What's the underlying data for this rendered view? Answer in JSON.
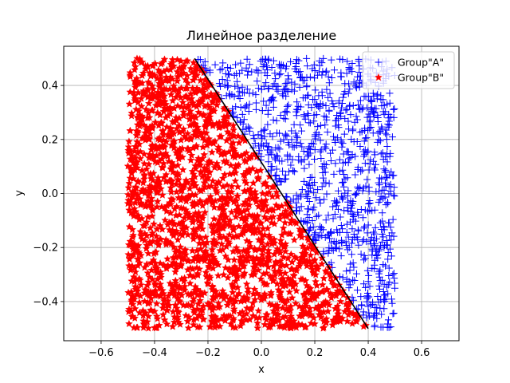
{
  "chart_data": {
    "type": "scatter",
    "title": "Линейное разделение",
    "xlabel": "x",
    "ylabel": "y",
    "xlim": [
      -0.74,
      0.74
    ],
    "ylim": [
      -0.545,
      0.545
    ],
    "xticks": [
      -0.6,
      -0.4,
      -0.2,
      0.0,
      0.2,
      0.4,
      0.6
    ],
    "yticks": [
      -0.4,
      -0.2,
      0.0,
      0.2,
      0.4
    ],
    "xtick_labels": [
      "−0.6",
      "−0.4",
      "−0.2",
      "0.0",
      "0.2",
      "0.4",
      "0.6"
    ],
    "ytick_labels": [
      "−0.4",
      "−0.2",
      "0.0",
      "0.2",
      "0.4"
    ],
    "grid": true,
    "legend_position": "top-right",
    "points_x_range": [
      -0.5,
      0.5
    ],
    "points_y_range": [
      -0.5,
      0.5
    ],
    "series": [
      {
        "name": "Group\"A\"",
        "marker": "+",
        "color": "#0000ff",
        "count": 1000,
        "region": "y > line"
      },
      {
        "name": "Group\"B\"",
        "marker": "*",
        "color": "#ff0000",
        "count": 1900,
        "region": "y < line"
      }
    ],
    "boundary_line": {
      "x": [
        -0.25,
        0.4
      ],
      "y": [
        0.5,
        -0.5
      ],
      "color": "#000000"
    }
  }
}
